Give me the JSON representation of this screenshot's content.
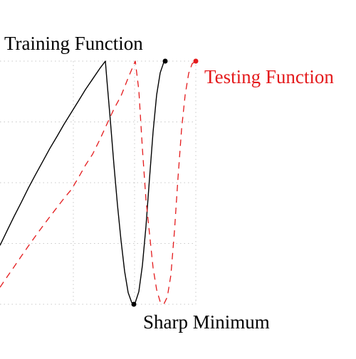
{
  "chart_data": {
    "type": "line",
    "title": "",
    "xlabel": "",
    "ylabel": "",
    "grid": true,
    "legend": "none",
    "series": [
      {
        "name": "Training Function",
        "color": "#000000",
        "style": "solid",
        "x": [
          0,
          10,
          20,
          30,
          40,
          50,
          60,
          70,
          80,
          90,
          100,
          110,
          120,
          130,
          140,
          148,
          150,
          155,
          160,
          165,
          170,
          175,
          180,
          185,
          188,
          190,
          195,
          200,
          205,
          210,
          215,
          220,
          225,
          230,
          232
        ],
        "y": [
          0.242,
          0.303,
          0.363,
          0.42,
          0.479,
          0.534,
          0.587,
          0.641,
          0.69,
          0.741,
          0.788,
          0.835,
          0.883,
          0.926,
          0.969,
          1.0,
          0.927,
          0.755,
          0.574,
          0.408,
          0.262,
          0.136,
          0.048,
          0.007,
          0.0,
          0.007,
          0.052,
          0.16,
          0.32,
          0.518,
          0.709,
          0.861,
          0.952,
          0.995,
          1.0
        ]
      },
      {
        "name": "Testing Function",
        "color": "#e41a1c",
        "style": "dashed",
        "x": [
          0,
          10,
          20,
          30,
          40,
          50,
          60,
          70,
          80,
          90,
          100,
          110,
          120,
          130,
          140,
          150,
          160,
          170,
          180,
          190,
          195,
          200,
          205,
          210,
          215,
          220,
          225,
          230,
          235,
          240,
          245,
          250,
          255,
          260,
          265,
          270,
          275
        ],
        "y": [
          0.07,
          0.113,
          0.155,
          0.198,
          0.24,
          0.281,
          0.321,
          0.36,
          0.398,
          0.436,
          0.471,
          0.52,
          0.572,
          0.617,
          0.676,
          0.74,
          0.803,
          0.857,
          0.931,
          1.0,
          0.88,
          0.64,
          0.43,
          0.29,
          0.15,
          0.06,
          0.01,
          0.0,
          0.03,
          0.12,
          0.3,
          0.52,
          0.72,
          0.86,
          0.95,
          0.99,
          1.0
        ]
      }
    ],
    "markers": [
      {
        "series": "Training Function",
        "x": 232,
        "y": 1.0,
        "color": "#000000"
      },
      {
        "series": "Testing Function",
        "x": 275,
        "y": 1.0,
        "color": "#e41a1c"
      },
      {
        "series": "Training Function",
        "x": 188,
        "y": 0.0,
        "color": "#000000"
      }
    ],
    "annotations": [
      {
        "text": "Training Function",
        "color": "#000000"
      },
      {
        "text": "Testing Function",
        "color": "#e41a1c"
      },
      {
        "text": "Sharp Minimum",
        "color": "#000000"
      }
    ]
  }
}
